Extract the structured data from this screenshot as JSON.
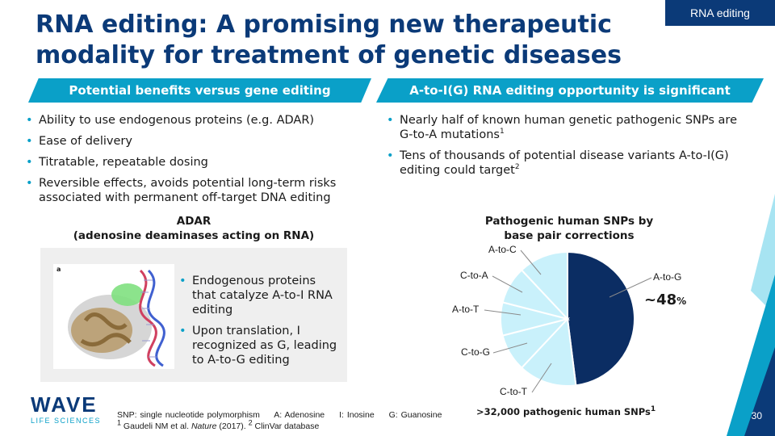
{
  "tag": "RNA editing",
  "title": "RNA editing: A promising new therapeutic modality for treatment of genetic diseases",
  "left_banner": "Potential benefits versus gene editing",
  "right_banner": "A-to-I(G) RNA editing opportunity is significant",
  "left_bullets": [
    "Ability to use endogenous proteins (e.g. ADAR)",
    "Ease of delivery",
    "Titratable, repeatable dosing",
    "Reversible effects, avoids potential long-term risks associated with permanent off-target DNA editing"
  ],
  "right_bullets": {
    "b1": "Nearly half of known human genetic pathogenic SNPs are G-to-A mutations",
    "b1_sup": "1",
    "b2": "Tens of thousands of potential disease variants A-to-I(G) editing could target",
    "b2_sup": "2"
  },
  "adar": {
    "heading_line1": "ADAR",
    "heading_line2": "(adenosine deaminases acting on RNA)",
    "figure_label": "a",
    "bullets": [
      "Endogenous proteins that catalyze A-to-I RNA editing",
      "Upon translation, I recognized as G, leading to A-to-G editing"
    ]
  },
  "pie_heading_line1": "Pathogenic human SNPs by",
  "pie_heading_line2": "base pair corrections",
  "chart_data": {
    "type": "pie",
    "title": "Pathogenic human SNPs by base pair corrections",
    "slices": [
      {
        "label": "A-to-G",
        "value": 48,
        "color": "#0b2d63"
      },
      {
        "label": "C-to-T",
        "value": 14,
        "color": "#c9f1fb"
      },
      {
        "label": "C-to-G",
        "value": 9,
        "color": "#c9f1fb"
      },
      {
        "label": "A-to-T",
        "value": 8,
        "color": "#c9f1fb"
      },
      {
        "label": "C-to-A",
        "value": 9,
        "color": "#c9f1fb"
      },
      {
        "label": "A-to-C",
        "value": 12,
        "color": "#c9f1fb"
      }
    ],
    "highlight_label": "~48",
    "highlight_unit": "%",
    "caption": ">32,000 pathogenic human SNPs",
    "caption_sup": "1"
  },
  "footer": {
    "defs": [
      "SNP: single nucleotide polymorphism",
      "A: Adenosine",
      "I: Inosine",
      "G: Guanosine"
    ],
    "ref_sup1": "1",
    "ref_part1": " Gaudeli NM et al. ",
    "ref_journal": "Nature",
    "ref_part2": " (2017). ",
    "ref_sup2": "2",
    "ref_part3": " ClinVar database"
  },
  "logo": {
    "main": "WAVE",
    "sub": "LIFE SCIENCES"
  },
  "page_number": "30",
  "colors": {
    "brand_navy": "#0b3a78",
    "accent_teal": "#0aa0c8"
  }
}
